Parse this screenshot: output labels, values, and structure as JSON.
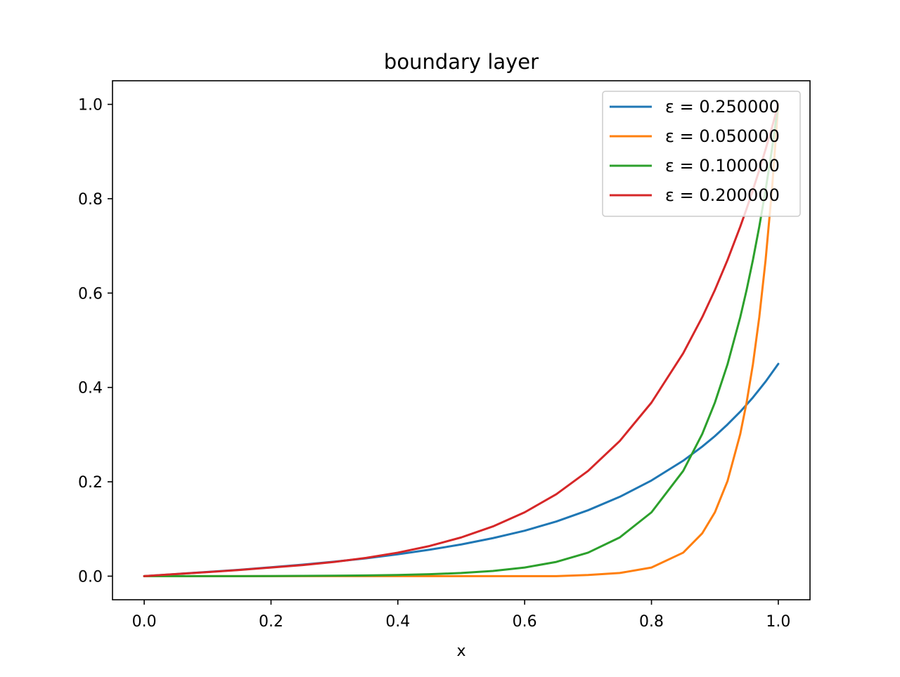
{
  "chart_data": {
    "type": "line",
    "title": "boundary layer",
    "xlabel": "x",
    "ylabel": "",
    "xlim": [
      -0.05,
      1.05
    ],
    "ylim": [
      -0.05,
      1.05
    ],
    "xticks": [
      0.0,
      0.2,
      0.4,
      0.6,
      0.8,
      1.0
    ],
    "xtick_labels": [
      "0.0",
      "0.2",
      "0.4",
      "0.6",
      "0.8",
      "1.0"
    ],
    "yticks": [
      0.0,
      0.2,
      0.4,
      0.6,
      0.8,
      1.0
    ],
    "ytick_labels": [
      "0.0",
      "0.2",
      "0.4",
      "0.6",
      "0.8",
      "1.0"
    ],
    "grid": false,
    "legend_position": "top-right",
    "x": [
      0.0,
      0.05,
      0.1,
      0.15,
      0.2,
      0.25,
      0.3,
      0.35,
      0.4,
      0.45,
      0.5,
      0.55,
      0.6,
      0.65,
      0.7,
      0.75,
      0.8,
      0.85,
      0.88,
      0.9,
      0.92,
      0.94,
      0.95,
      0.96,
      0.97,
      0.98,
      0.99,
      1.0
    ],
    "series": [
      {
        "name": "ε = 0.250000",
        "color": "#1f77b4",
        "values": [
          0.0,
          0.0044,
          0.009,
          0.0135,
          0.0188,
          0.0245,
          0.0307,
          0.0379,
          0.0464,
          0.056,
          0.0672,
          0.0806,
          0.0964,
          0.1159,
          0.1397,
          0.1682,
          0.2028,
          0.2447,
          0.2746,
          0.2968,
          0.3216,
          0.3486,
          0.3636,
          0.3787,
          0.3955,
          0.4124,
          0.4312,
          0.45
        ]
      },
      {
        "name": "ε = 0.050000",
        "color": "#ff7f0e",
        "values": [
          0.0,
          0.0,
          0.0,
          0.0,
          0.0,
          0.0,
          0.0,
          0.0,
          0.0,
          0.0,
          0.0,
          0.0,
          0.0,
          0.0,
          0.0025,
          0.0067,
          0.0183,
          0.0498,
          0.0907,
          0.1353,
          0.2019,
          0.3012,
          0.3679,
          0.4493,
          0.5488,
          0.6703,
          0.8187,
          1.0
        ]
      },
      {
        "name": "ε = 0.100000",
        "color": "#2ca02c",
        "values": [
          0.0,
          0.0,
          0.0,
          0.0,
          0.0003,
          0.0006,
          0.0009,
          0.0015,
          0.0025,
          0.0041,
          0.0067,
          0.0111,
          0.0183,
          0.0302,
          0.0498,
          0.0821,
          0.1353,
          0.2231,
          0.3012,
          0.3679,
          0.4493,
          0.5488,
          0.6065,
          0.6703,
          0.7408,
          0.8187,
          0.9048,
          1.0
        ]
      },
      {
        "name": "ε = 0.200000",
        "color": "#d62728",
        "values": [
          0.0,
          0.0045,
          0.0086,
          0.0131,
          0.0183,
          0.0235,
          0.0302,
          0.0388,
          0.0498,
          0.0639,
          0.0821,
          0.1054,
          0.1353,
          0.1738,
          0.2231,
          0.2865,
          0.3679,
          0.4724,
          0.5488,
          0.6065,
          0.6703,
          0.7408,
          0.7788,
          0.8187,
          0.8607,
          0.9048,
          0.9512,
          1.0
        ]
      }
    ]
  }
}
